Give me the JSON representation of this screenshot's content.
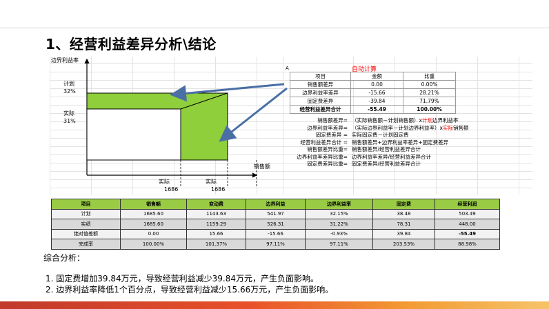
{
  "slide": {
    "title": "1、经营利益差异分析\\结论"
  },
  "diagram": {
    "y_axis_label": "边界利益率",
    "x_axis_label": "销售额",
    "plan_label": "计划",
    "plan_value": "32%",
    "actual_label": "实际",
    "actual_value": "31%",
    "x_actual_label_1": "实际",
    "x_actual_value_1": "1686",
    "x_actual_label_2": "实际",
    "x_actual_value_2": "1686",
    "fill_color": "#8fcf3c",
    "arrow_color": "#4a6fa5"
  },
  "mini_table": {
    "col_marker": "A",
    "auto_calc": "自动计算",
    "headers": [
      "项目",
      "金额",
      "比重"
    ],
    "rows": [
      [
        "销售额差异",
        "0.00",
        "0.00%"
      ],
      [
        "边界利益率差异",
        "-15.66",
        "28.21%"
      ],
      [
        "固定费差异",
        "-39.84",
        "71.79%"
      ],
      [
        "经营利益差异合计",
        "-55.49",
        "100.00%"
      ]
    ]
  },
  "formulas": [
    {
      "left": "销售额差异=",
      "right_a": "（实际销售额－计划销售额）x",
      "right_red": "计划",
      "right_b": "边界利益率"
    },
    {
      "left": "边界利益率差异=",
      "right_a": "（实际边界利益率－计划边界利益率）x",
      "right_red": "实际",
      "right_b": "销售额"
    },
    {
      "left": "固定费差异 =",
      "right_a": "实际固定费－计划固定费",
      "right_red": "",
      "right_b": ""
    },
    {
      "left": "经营利益差异合计 =",
      "right_a": "销售额差异+边界利益率差异+固定费差异",
      "right_red": "",
      "right_b": ""
    },
    {
      "left": "销售额差异比重=",
      "right_a": "销售额差异/经营利益差异合计",
      "right_red": "",
      "right_b": ""
    },
    {
      "left": "边界利益率差异比重=",
      "right_a": "边界利益率差异/经营利益差异合计",
      "right_red": "",
      "right_b": ""
    },
    {
      "left": "固定费差异比重=",
      "right_a": "固定费差异/经营利益差异合计",
      "right_red": "",
      "right_b": ""
    }
  ],
  "big_table": {
    "headers": [
      "项目",
      "销售额",
      "变动费",
      "边界利益",
      "边界利益率",
      "固定费",
      "经营利润"
    ],
    "rows": [
      [
        "计划",
        "1685.60",
        "1143.63",
        "541.97",
        "32.15%",
        "38.48",
        "503.49"
      ],
      [
        "实绩",
        "1685.60",
        "1159.29",
        "526.31",
        "31.22%",
        "78.31",
        "448.00"
      ],
      [
        "绝对值差额",
        "0.00",
        "15.66",
        "-15.66",
        "-0.93%",
        "39.84",
        "-55.49"
      ],
      [
        "完成率",
        "100.00%",
        "101.37%",
        "97.11%",
        "97.11%",
        "203.53%",
        "88.98%"
      ]
    ]
  },
  "analysis": {
    "heading": "综合分析：",
    "points": [
      "1. 固定费增加39.84万元，导致经营利益减少39.84万元，产生负面影响。",
      "2. 边界利益率降低1个百分点，导致经营利益减少15.66万元，产生负面影响。"
    ]
  }
}
